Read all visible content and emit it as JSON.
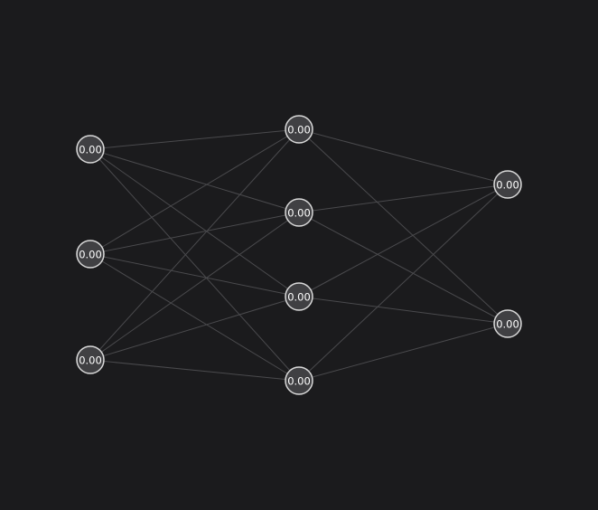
{
  "colors": {
    "background": "#1b1b1d",
    "node_fill": "#404043",
    "node_stroke": "#d9d9d9",
    "edge": "#4a4a4d",
    "label": "#ffffff"
  },
  "network": {
    "layers": [
      {
        "nodes": [
          {
            "value": "0.00"
          },
          {
            "value": "0.00"
          },
          {
            "value": "0.00"
          }
        ]
      },
      {
        "nodes": [
          {
            "value": "0.00"
          },
          {
            "value": "0.00"
          },
          {
            "value": "0.00"
          },
          {
            "value": "0.00"
          }
        ]
      },
      {
        "nodes": [
          {
            "value": "0.00"
          },
          {
            "value": "0.00"
          }
        ]
      }
    ],
    "connectivity": "fully-connected between adjacent layers"
  }
}
